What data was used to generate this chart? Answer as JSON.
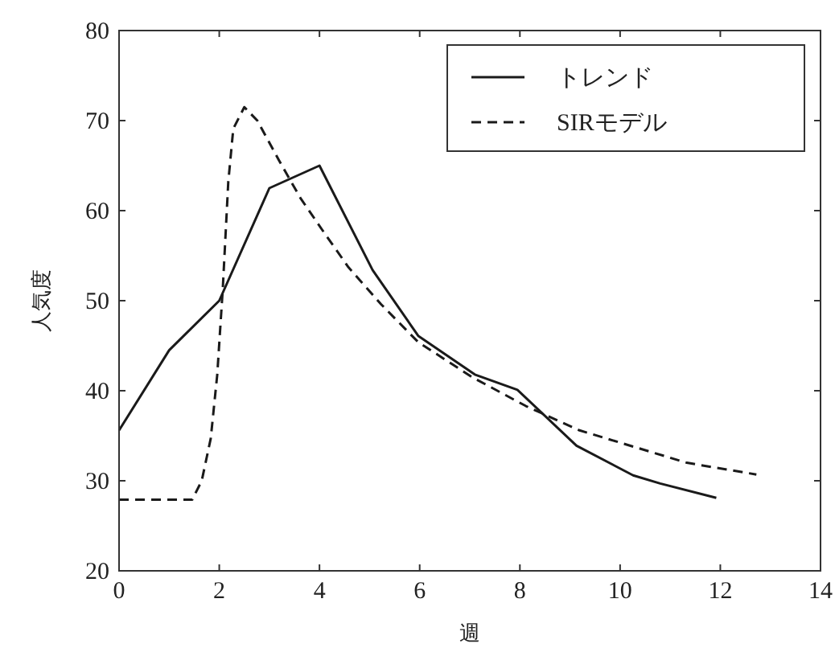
{
  "chart_data": {
    "type": "line",
    "xlabel": "週",
    "ylabel": "人気度",
    "xlim": [
      0,
      14
    ],
    "ylim": [
      20,
      80
    ],
    "xticks": [
      0,
      2,
      4,
      6,
      8,
      10,
      12,
      14
    ],
    "yticks": [
      20,
      30,
      40,
      50,
      60,
      70,
      80
    ],
    "legend": "top right",
    "grid": false,
    "marker": "none",
    "series": [
      {
        "name": "トレンド",
        "color": "#1a1a1a",
        "line_style": "solid",
        "x": [
          0,
          1.0,
          2.0,
          3.0,
          4.0,
          5.06,
          5.97,
          7.1,
          7.95,
          9.13,
          10.26,
          10.8,
          11.92
        ],
        "values": [
          35.6,
          44.5,
          50.0,
          62.5,
          65.0,
          53.4,
          46.1,
          41.8,
          40.1,
          33.9,
          30.6,
          29.7,
          28.1
        ]
      },
      {
        "name": "SIRモデル",
        "color": "#1a1a1a",
        "line_style": "dashed",
        "x": [
          0,
          1.46,
          1.65,
          1.83,
          1.96,
          2.07,
          2.18,
          2.28,
          2.5,
          2.76,
          3.19,
          3.62,
          4.05,
          4.58,
          5.23,
          5.97,
          7.05,
          8.12,
          9.19,
          10.26,
          11.33,
          12.72
        ],
        "values": [
          27.9,
          27.9,
          30.0,
          34.7,
          41.8,
          51.3,
          63.2,
          69.1,
          71.5,
          70.0,
          65.6,
          61.4,
          57.9,
          53.7,
          49.6,
          45.4,
          41.5,
          38.3,
          35.6,
          33.8,
          32.0,
          30.7
        ]
      }
    ]
  }
}
